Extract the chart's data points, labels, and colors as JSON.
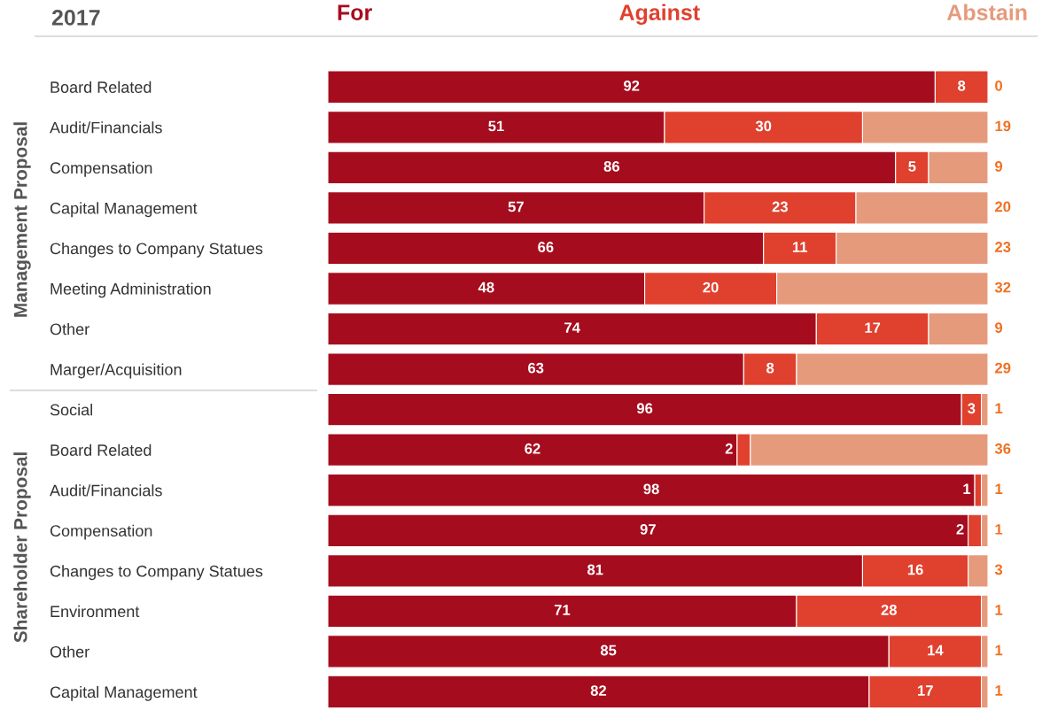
{
  "chart_data": {
    "type": "bar",
    "orientation": "horizontal",
    "stacked": true,
    "title": "2017",
    "categories": [
      "Board Related",
      "Audit/Financials",
      "Compensation",
      "Capital Management",
      "Changes to Company Statues",
      "Meeting Administration",
      "Other",
      "Marger/Acquisition",
      "Social",
      "Board Related",
      "Audit/Financials",
      "Compensation",
      "Changes to Company Statues",
      "Environment",
      "Other",
      "Capital Management"
    ],
    "series": [
      {
        "name": "For",
        "color": "#a50d1e",
        "values": [
          92,
          51,
          86,
          57,
          66,
          48,
          74,
          63,
          96,
          62,
          98,
          97,
          81,
          71,
          85,
          82
        ]
      },
      {
        "name": "Against",
        "color": "#e0402e",
        "values": [
          8,
          30,
          5,
          23,
          11,
          20,
          17,
          8,
          3,
          2,
          1,
          2,
          16,
          28,
          14,
          17
        ]
      },
      {
        "name": "Abstain",
        "color": "#e69a7c",
        "values": [
          0,
          19,
          9,
          20,
          23,
          32,
          9,
          29,
          1,
          36,
          1,
          1,
          3,
          1,
          1,
          1
        ]
      }
    ],
    "data_labels": true,
    "legend": "top",
    "grid": false,
    "annotations": [
      "Management Proposal",
      "Shareholder Proposal"
    ]
  }
}
